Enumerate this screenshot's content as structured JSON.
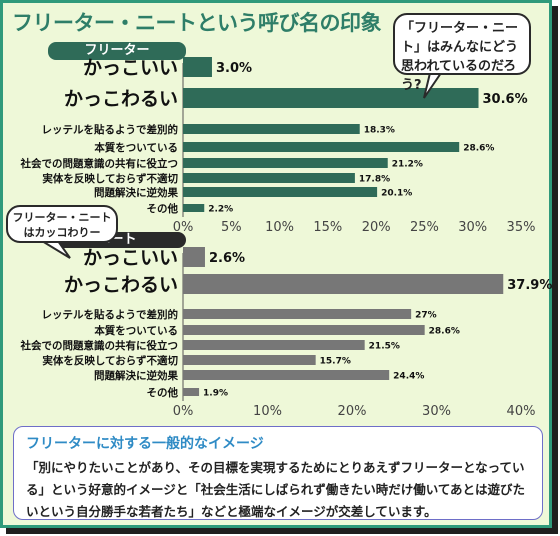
{
  "title": "フリーター・ニートという呼び名の印象",
  "bubble_question": "「フリーター・ニート」はみんなにどう思われているのだろう?",
  "bubble_quote": "フリーター・ニートはカッコわりー",
  "summary": {
    "heading": "フリーターに対する一般的なイメージ",
    "body": "「別にやりたいことがあり、その目標を実現するためにとりあえずフリーターとなっている」という好意的イメージと「社会生活にしばられず働きたい時だけ働いてあとは遊びたいという自分勝手な若者たち」などと極端なイメージが交差しています。"
  },
  "colors": {
    "freeter_bar": "#2f6b58",
    "neet_bar": "#777777",
    "frame": "#2f9a7b",
    "background": "#eef8d8"
  },
  "chart_data": [
    {
      "type": "bar",
      "orientation": "horizontal",
      "group_label": "フリーター",
      "categories": [
        "かっこいい",
        "かっこわるい",
        "レッテルを貼るようで差別的",
        "本質をついている",
        "社会での問題意識の共有に役立つ",
        "実体を反映しておらず不適切",
        "問題解決に逆効果",
        "その他"
      ],
      "values": [
        3.0,
        30.6,
        18.3,
        28.6,
        21.2,
        17.8,
        20.1,
        2.2
      ],
      "value_labels": [
        "3.0%",
        "30.6%",
        "18.3%",
        "28.6%",
        "21.2%",
        "17.8%",
        "20.1%",
        "2.2%"
      ],
      "xlim": [
        0,
        35
      ],
      "ticks": [
        "0%",
        "5%",
        "10%",
        "15%",
        "20%",
        "25%",
        "30%",
        "35%"
      ]
    },
    {
      "type": "bar",
      "orientation": "horizontal",
      "group_label": "ニート",
      "categories": [
        "かっこいい",
        "かっこわるい",
        "レッテルを貼るようで差別的",
        "本質をついている",
        "社会での問題意識の共有に役立つ",
        "実体を反映しておらず不適切",
        "問題解決に逆効果",
        "その他"
      ],
      "values": [
        2.6,
        37.9,
        27,
        28.6,
        21.5,
        15.7,
        24.4,
        1.9
      ],
      "value_labels": [
        "2.6%",
        "37.9%",
        "27%",
        "28.6%",
        "21.5%",
        "15.7%",
        "24.4%",
        "1.9%"
      ],
      "xlim": [
        0,
        40
      ],
      "ticks": [
        "0%",
        "10%",
        "20%",
        "30%",
        "40%"
      ]
    }
  ]
}
